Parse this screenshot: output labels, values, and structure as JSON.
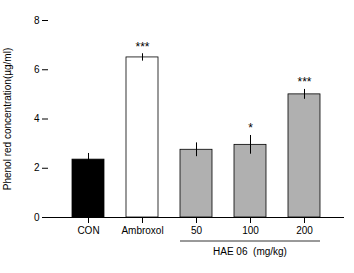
{
  "chart_data": {
    "type": "bar",
    "categories": [
      "CON",
      "Ambroxol",
      "50",
      "100",
      "200"
    ],
    "values": [
      2.35,
      6.5,
      2.75,
      2.95,
      5.0
    ],
    "errors": [
      0.25,
      0.15,
      0.28,
      0.38,
      0.2
    ],
    "colors": [
      "black",
      "white",
      "#b0b0b0",
      "#b0b0b0",
      "#b0b0b0"
    ],
    "significance": [
      null,
      "***",
      null,
      "*",
      "***"
    ],
    "ylabel": "Phenol red concentration(µg/ml)",
    "ylim": [
      0,
      8
    ],
    "yticks": [
      0,
      2,
      4,
      6,
      8
    ],
    "annotations": [
      {
        "text": "HAE 06  (mg/kg)",
        "categories": [
          "50",
          "100",
          "200"
        ]
      }
    ]
  }
}
